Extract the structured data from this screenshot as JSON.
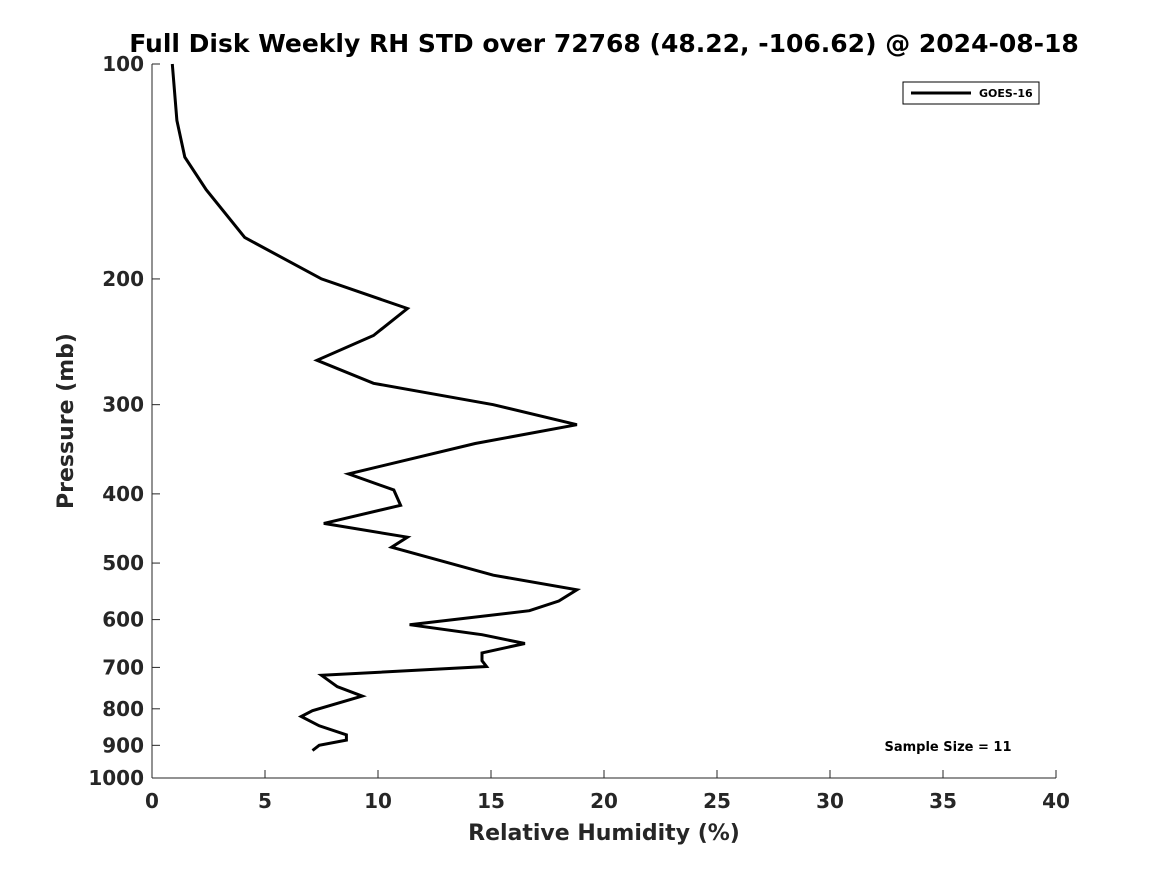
{
  "chart_data": {
    "type": "line",
    "title": "Full Disk Weekly RH STD over 72768 (48.22, -106.62) @ 2024-08-18",
    "xlabel": "Relative Humidity (%)",
    "ylabel": "Pressure (mb)",
    "xlim": [
      0,
      40
    ],
    "ylim": [
      100,
      1000
    ],
    "yscale": "log",
    "yinverted": true,
    "grid": false,
    "legend_position": "top-right",
    "x_ticks": [
      "0",
      "5",
      "10",
      "15",
      "20",
      "25",
      "30",
      "35",
      "40"
    ],
    "y_ticks": [
      "100",
      "200",
      "300",
      "400",
      "500",
      "600",
      "700",
      "800",
      "900",
      "1000"
    ],
    "annotation": "Sample Size = 11",
    "series": [
      {
        "name": "GOES-16",
        "color": "#000000",
        "points": [
          [
            0.9,
            100
          ],
          [
            1.1,
            120
          ],
          [
            1.45,
            135
          ],
          [
            2.4,
            150
          ],
          [
            4.1,
            175
          ],
          [
            7.5,
            200
          ],
          [
            11.3,
            220
          ],
          [
            9.8,
            240
          ],
          [
            7.3,
            260
          ],
          [
            9.8,
            280
          ],
          [
            15.1,
            300
          ],
          [
            18.8,
            320
          ],
          [
            14.3,
            340
          ],
          [
            8.7,
            375
          ],
          [
            10.7,
            395
          ],
          [
            11.0,
            415
          ],
          [
            7.6,
            440
          ],
          [
            11.3,
            460
          ],
          [
            10.6,
            475
          ],
          [
            15.1,
            520
          ],
          [
            18.8,
            545
          ],
          [
            18.0,
            565
          ],
          [
            16.7,
            583
          ],
          [
            11.4,
            610
          ],
          [
            14.6,
            630
          ],
          [
            16.5,
            648
          ],
          [
            14.6,
            668
          ],
          [
            14.6,
            685
          ],
          [
            14.8,
            698
          ],
          [
            7.5,
            718
          ],
          [
            8.2,
            745
          ],
          [
            9.3,
            768
          ],
          [
            7.1,
            805
          ],
          [
            6.6,
            820
          ],
          [
            7.4,
            845
          ],
          [
            8.6,
            870
          ],
          [
            8.6,
            885
          ],
          [
            7.4,
            900
          ],
          [
            7.1,
            915
          ]
        ]
      }
    ]
  }
}
